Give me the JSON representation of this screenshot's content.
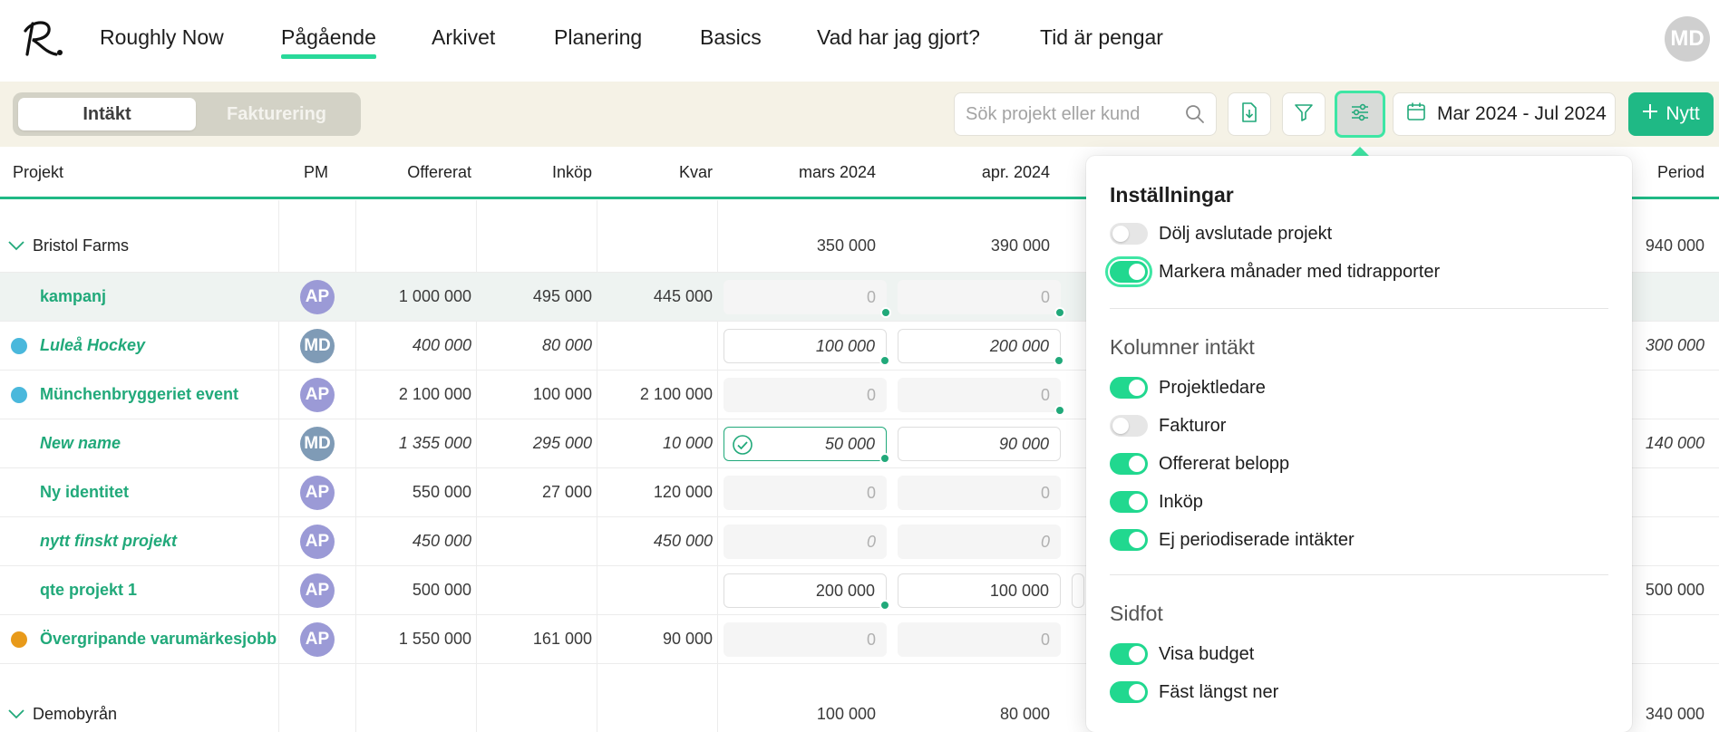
{
  "nav": {
    "logo_text": "R.",
    "items": [
      "Roughly Now",
      "Pågående",
      "Arkivet",
      "Planering",
      "Basics",
      "Vad har jag gjort?",
      "Tid är pengar"
    ],
    "active": "Pågående",
    "user_initials": "MD"
  },
  "toolbar": {
    "tab_revenue": "Intäkt",
    "tab_invoicing": "Fakturering",
    "search_placeholder": "Sök projekt eller kund",
    "date_range": "Mar 2024 - Jul 2024",
    "new_label": "Nytt"
  },
  "table": {
    "headers": {
      "project": "Projekt",
      "pm": "PM",
      "offered": "Offererat",
      "purchases": "Inköp",
      "remaining": "Kvar",
      "month1": "mars 2024",
      "month2": "apr. 2024",
      "period": "Period"
    },
    "groups": [
      {
        "name": "Bristol Farms",
        "m1": "350 000",
        "m2": "390 000",
        "period": "940 000",
        "rows": [
          {
            "name": "kampanj",
            "pm": "AP",
            "offered": "1 000 000",
            "purchases": "495 000",
            "remaining": "445 000",
            "m1": "0",
            "m2": "0",
            "period": "",
            "italic": false,
            "dot": "",
            "highlight": true
          },
          {
            "name": "Luleå Hockey",
            "pm": "MD",
            "offered": "400 000",
            "purchases": "80 000",
            "remaining": "",
            "m1": "100 000",
            "m2": "200 000",
            "period": "300 000",
            "italic": true,
            "dot": "#4ab8dc"
          },
          {
            "name": "Münchenbryggeriet event",
            "pm": "AP",
            "offered": "2 100 000",
            "purchases": "100 000",
            "remaining": "2 100 000",
            "m1": "0",
            "m2": "0",
            "period": "",
            "italic": false,
            "dot": "#4ab8dc"
          },
          {
            "name": "New name",
            "pm": "MD",
            "offered": "1 355 000",
            "purchases": "295 000",
            "remaining": "10 000",
            "m1": "50 000",
            "m2": "90 000",
            "period": "140 000",
            "italic": true,
            "dot": ""
          },
          {
            "name": "Ny identitet",
            "pm": "AP",
            "offered": "550 000",
            "purchases": "27 000",
            "remaining": "120 000",
            "m1": "0",
            "m2": "0",
            "period": "",
            "italic": false,
            "dot": ""
          },
          {
            "name": "nytt finskt projekt",
            "pm": "AP",
            "offered": "450 000",
            "purchases": "",
            "remaining": "450 000",
            "m1": "0",
            "m2": "0",
            "period": "",
            "italic": true,
            "dot": ""
          },
          {
            "name": "qte projekt 1",
            "pm": "AP",
            "offered": "500 000",
            "purchases": "",
            "remaining": "",
            "m1": "200 000",
            "m2": "100 000",
            "period": "500 000",
            "italic": false,
            "dot": ""
          },
          {
            "name": "Övergripande varumärkesjobb",
            "pm": "AP",
            "offered": "1 550 000",
            "purchases": "161 000",
            "remaining": "90 000",
            "m1": "0",
            "m2": "0",
            "period": "",
            "italic": false,
            "dot": "#e89a1a"
          }
        ]
      },
      {
        "name": "Demobyrån",
        "m1": "100 000",
        "m2": "80 000",
        "period": "340 000"
      }
    ]
  },
  "settings": {
    "title": "Inställningar",
    "general": [
      {
        "label": "Dölj avslutade projekt",
        "on": false
      },
      {
        "label": "Markera månader med tidrapporter",
        "on": true
      }
    ],
    "columns_title": "Kolumner intäkt",
    "columns": [
      {
        "label": "Projektledare",
        "on": true
      },
      {
        "label": "Fakturor",
        "on": false
      },
      {
        "label": "Offererat belopp",
        "on": true
      },
      {
        "label": "Inköp",
        "on": true
      },
      {
        "label": "Ej periodiserade intäkter",
        "on": true
      }
    ],
    "footer_title": "Sidfot",
    "footer": [
      {
        "label": "Visa budget",
        "on": true
      },
      {
        "label": "Fäst längst ner",
        "on": true
      }
    ]
  },
  "colors": {
    "accent": "#21a97a",
    "accent_bright": "#29d99a",
    "toolbar_bg": "#f5f2e6",
    "pm_ap": "#9b9ad6",
    "pm_md": "#7f9bb6"
  }
}
